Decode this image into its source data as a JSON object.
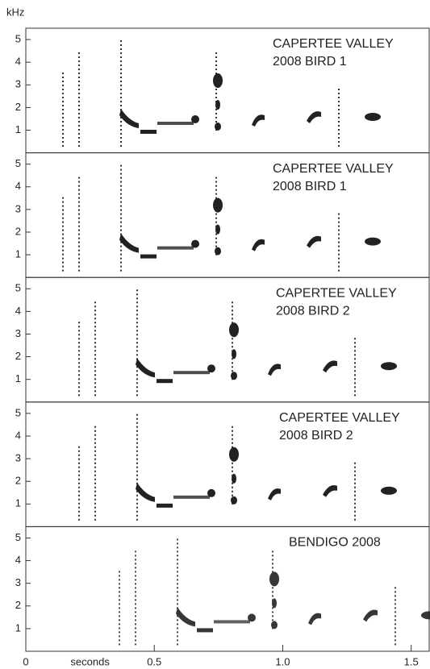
{
  "chart_data": {
    "type": "spectrogram",
    "y_unit": "kHz",
    "x_label": "seconds",
    "xlim": [
      0,
      1.57
    ],
    "xticks": [
      0,
      0.5,
      {
        "value": 1,
        "label": "1.0"
      },
      1.5
    ],
    "ylim": [
      0,
      5.5
    ],
    "yticks": [
      1,
      2,
      3,
      4,
      5
    ],
    "panels": [
      {
        "label": [
          "CAPERTEE VALLEY",
          "2008  BIRD 1"
        ]
      },
      {
        "label": [
          "CAPERTEE VALLEY",
          "2008  BIRD 1"
        ]
      },
      {
        "label": [
          "CAPERTEE VALLEY",
          "2008  BIRD 2"
        ]
      },
      {
        "label": [
          "CAPERTEE VALLEY",
          "2008  BIRD 2"
        ]
      },
      {
        "label": [
          "BENDIGO 2008"
        ]
      }
    ]
  }
}
